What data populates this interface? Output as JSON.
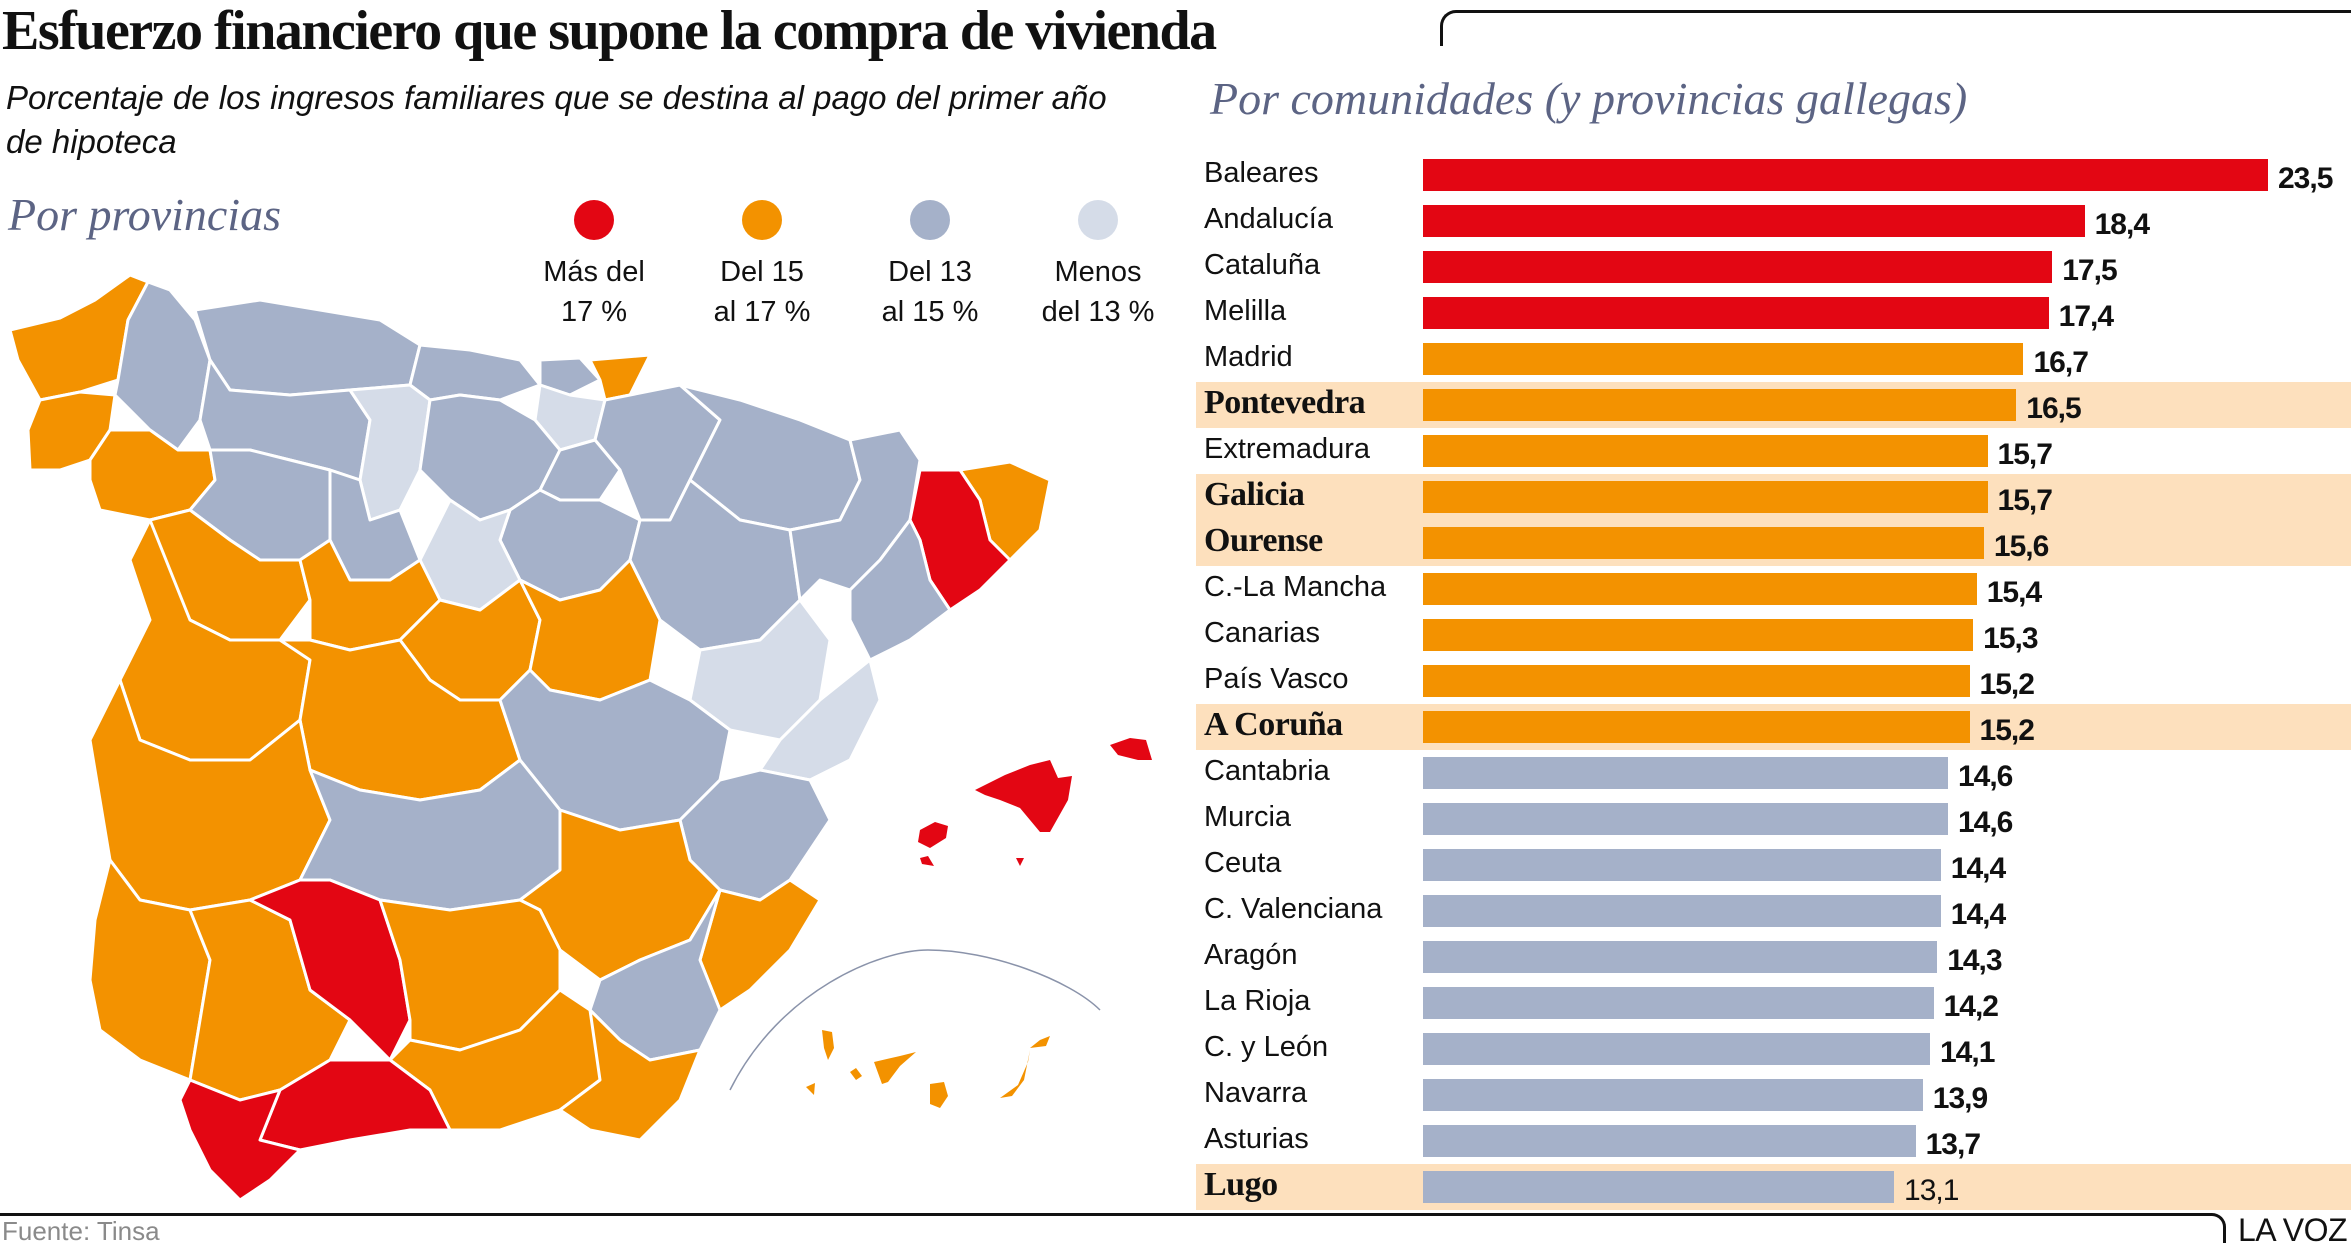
{
  "title": "Esfuerzo financiero que supone la compra de vivienda",
  "subtitle": "Porcentaje de los ingresos familiares que se destina al pago del primer año de hipoteca",
  "map_section": {
    "title": "Por provincias",
    "legend": [
      {
        "label": "Más del\n17 %",
        "color": "#e30613",
        "icon": "red-dot-icon"
      },
      {
        "label": "Del 15\nal 17 %",
        "color": "#f39200",
        "icon": "orange-dot-icon"
      },
      {
        "label": "Del 13\nal 15 %",
        "color": "#a5b1c9",
        "icon": "blue-gray-dot-icon"
      },
      {
        "label": "Menos\ndel 13 %",
        "color": "#d5dce8",
        "icon": "light-gray-dot-icon"
      }
    ]
  },
  "chart_section": {
    "title": "Por comunidades (y provincias gallegas)"
  },
  "colors": {
    "red": "#e30613",
    "orange": "#f39200",
    "bluegray": "#a5b1c9",
    "light": "#d5dce8",
    "highlight": "#fde0bd",
    "section_title": "#5c6484"
  },
  "chart_data": {
    "type": "bar",
    "orientation": "horizontal",
    "title": "Por comunidades (y provincias gallegas)",
    "xlabel": "",
    "ylabel": "",
    "unit": "% de ingresos familiares",
    "xlim": [
      0,
      23.5
    ],
    "grid": false,
    "legend": "top-left (map legend)",
    "categories": [
      "Baleares",
      "Andalucía",
      "Cataluña",
      "Melilla",
      "Madrid",
      "Pontevedra",
      "Extremadura",
      "Galicia",
      "Ourense",
      "C.-La Mancha",
      "Canarias",
      "País Vasco",
      "A Coruña",
      "Cantabria",
      "Murcia",
      "Ceuta",
      "C. Valenciana",
      "Aragón",
      "La Rioja",
      "C. y León",
      "Navarra",
      "Asturias",
      "Lugo"
    ],
    "values": [
      23.5,
      18.4,
      17.5,
      17.4,
      16.7,
      16.5,
      15.7,
      15.7,
      15.6,
      15.4,
      15.3,
      15.2,
      15.2,
      14.6,
      14.6,
      14.4,
      14.4,
      14.3,
      14.2,
      14.1,
      13.9,
      13.7,
      13.1
    ],
    "value_labels": [
      "23,5",
      "18,4",
      "17,5",
      "17,4",
      "16,7",
      "16,5",
      "15,7",
      "15,7",
      "15,6",
      "15,4",
      "15,3",
      "15,2",
      "15,2",
      "14,6",
      "14,6",
      "14,4",
      "14,4",
      "14,3",
      "14,2",
      "14,1",
      "13,9",
      "13,7",
      "13,1"
    ],
    "bar_colors": [
      "red",
      "red",
      "red",
      "red",
      "orange",
      "orange",
      "orange",
      "orange",
      "orange",
      "orange",
      "orange",
      "orange",
      "orange",
      "bluegray",
      "bluegray",
      "bluegray",
      "bluegray",
      "bluegray",
      "bluegray",
      "bluegray",
      "bluegray",
      "bluegray",
      "bluegray"
    ],
    "galician": [
      false,
      false,
      false,
      false,
      false,
      true,
      false,
      true,
      true,
      false,
      false,
      false,
      true,
      false,
      false,
      false,
      false,
      false,
      false,
      false,
      false,
      false,
      true
    ]
  },
  "footer": {
    "source": "Fuente: Tinsa",
    "brand": "LA VOZ"
  }
}
